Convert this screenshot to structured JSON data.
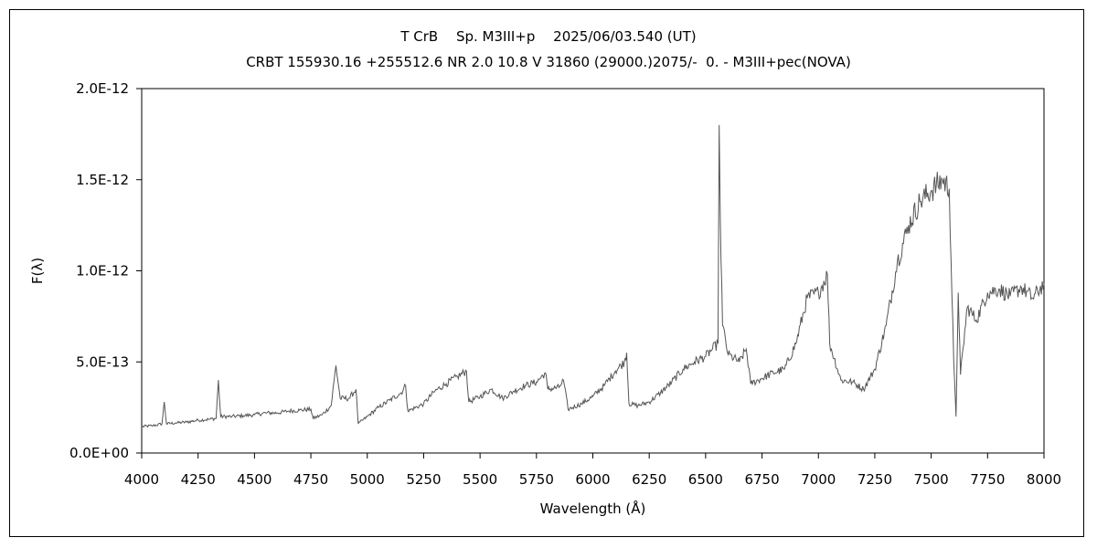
{
  "chart_data": {
    "type": "line",
    "title": "T CrB　 Sp. M3III+p　 2025/06/03.540 (UT)",
    "subtitle": "CRBT 155930.16 +255512.6 NR 2.0 10.8 V 31860 (29000.)2075/-  0. - M3III+pec(NOVA)",
    "xlabel": "Wavelength (Å)",
    "ylabel": "F(λ)",
    "xlim": [
      4000,
      8000
    ],
    "ylim": [
      0,
      2e-12
    ],
    "x_ticks": [
      4000,
      4250,
      4500,
      4750,
      5000,
      5250,
      5500,
      5750,
      6000,
      6250,
      6500,
      6750,
      7000,
      7250,
      7500,
      7750,
      8000
    ],
    "x_tick_labels": [
      "4000",
      "4250",
      "4500",
      "4750",
      "5000",
      "5250",
      "5500",
      "5750",
      "6000",
      "6250",
      "6500",
      "6750",
      "7000",
      "7250",
      "7500",
      "7750",
      "8000"
    ],
    "y_ticks": [
      0,
      5e-13,
      1e-12,
      1.5e-12,
      2e-12
    ],
    "y_tick_labels": [
      "0.0E+00",
      "5.0E-13",
      "1.0E-12",
      "1.5E-12",
      "2.0E-12"
    ],
    "grid": false,
    "line_color": "#555555",
    "series": [
      {
        "points": [
          [
            4000,
            1.45e-13
          ],
          [
            4050,
            1.5e-13
          ],
          [
            4090,
            1.6e-13
          ],
          [
            4100,
            2.8e-13
          ],
          [
            4110,
            1.6e-13
          ],
          [
            4150,
            1.65e-13
          ],
          [
            4200,
            1.7e-13
          ],
          [
            4250,
            1.8e-13
          ],
          [
            4300,
            1.85e-13
          ],
          [
            4330,
            1.9e-13
          ],
          [
            4340,
            4e-13
          ],
          [
            4350,
            2e-13
          ],
          [
            4400,
            2e-13
          ],
          [
            4450,
            2.05e-13
          ],
          [
            4500,
            2.1e-13
          ],
          [
            4550,
            2.2e-13
          ],
          [
            4600,
            2.2e-13
          ],
          [
            4650,
            2.3e-13
          ],
          [
            4700,
            2.35e-13
          ],
          [
            4750,
            2.4e-13
          ],
          [
            4760,
            1.9e-13
          ],
          [
            4800,
            2.1e-13
          ],
          [
            4840,
            2.6e-13
          ],
          [
            4861,
            4.8e-13
          ],
          [
            4880,
            3e-13
          ],
          [
            4920,
            3e-13
          ],
          [
            4950,
            3.5e-13
          ],
          [
            4960,
            1.6e-13
          ],
          [
            5000,
            2e-13
          ],
          [
            5050,
            2.5e-13
          ],
          [
            5100,
            2.9e-13
          ],
          [
            5150,
            3.3e-13
          ],
          [
            5170,
            3.7e-13
          ],
          [
            5180,
            2.3e-13
          ],
          [
            5250,
            2.7e-13
          ],
          [
            5300,
            3.4e-13
          ],
          [
            5350,
            3.8e-13
          ],
          [
            5400,
            4.2e-13
          ],
          [
            5440,
            4.5e-13
          ],
          [
            5450,
            2.8e-13
          ],
          [
            5500,
            3.1e-13
          ],
          [
            5550,
            3.5e-13
          ],
          [
            5600,
            3e-13
          ],
          [
            5650,
            3.4e-13
          ],
          [
            5700,
            3.7e-13
          ],
          [
            5750,
            3.9e-13
          ],
          [
            5790,
            4.4e-13
          ],
          [
            5800,
            3.5e-13
          ],
          [
            5850,
            3.6e-13
          ],
          [
            5870,
            4e-13
          ],
          [
            5890,
            2.4e-13
          ],
          [
            5950,
            2.7e-13
          ],
          [
            6000,
            3.1e-13
          ],
          [
            6050,
            3.7e-13
          ],
          [
            6100,
            4.5e-13
          ],
          [
            6140,
            5e-13
          ],
          [
            6150,
            5.5e-13
          ],
          [
            6160,
            2.7e-13
          ],
          [
            6200,
            2.6e-13
          ],
          [
            6250,
            2.8e-13
          ],
          [
            6300,
            3.3e-13
          ],
          [
            6350,
            3.9e-13
          ],
          [
            6400,
            4.6e-13
          ],
          [
            6450,
            5e-13
          ],
          [
            6500,
            5.3e-13
          ],
          [
            6530,
            5.7e-13
          ],
          [
            6555,
            6e-13
          ],
          [
            6560,
            1.8e-12
          ],
          [
            6565,
            1.3e-12
          ],
          [
            6575,
            7e-13
          ],
          [
            6600,
            5.4e-13
          ],
          [
            6650,
            5e-13
          ],
          [
            6680,
            5.7e-13
          ],
          [
            6700,
            3.8e-13
          ],
          [
            6750,
            4.1e-13
          ],
          [
            6800,
            4.4e-13
          ],
          [
            6850,
            4.6e-13
          ],
          [
            6900,
            6e-13
          ],
          [
            6950,
            8.5e-13
          ],
          [
            7000,
            8.8e-13
          ],
          [
            7040,
            9.8e-13
          ],
          [
            7050,
            6e-13
          ],
          [
            7100,
            4e-13
          ],
          [
            7150,
            3.9e-13
          ],
          [
            7200,
            3.5e-13
          ],
          [
            7250,
            4.6e-13
          ],
          [
            7300,
            7e-13
          ],
          [
            7350,
            1.05e-12
          ],
          [
            7400,
            1.25e-12
          ],
          [
            7450,
            1.38e-12
          ],
          [
            7500,
            1.44e-12
          ],
          [
            7550,
            1.5e-12
          ],
          [
            7580,
            1.45e-12
          ],
          [
            7600,
            5e-13
          ],
          [
            7610,
            2e-13
          ],
          [
            7620,
            8.8e-13
          ],
          [
            7630,
            4.3e-13
          ],
          [
            7660,
            8e-13
          ],
          [
            7700,
            7.3e-13
          ],
          [
            7750,
            8.8e-13
          ],
          [
            7800,
            9e-13
          ],
          [
            7850,
            8.6e-13
          ],
          [
            7900,
            9.1e-13
          ],
          [
            7950,
            8.5e-13
          ],
          [
            8000,
            9.3e-13
          ]
        ]
      }
    ]
  }
}
